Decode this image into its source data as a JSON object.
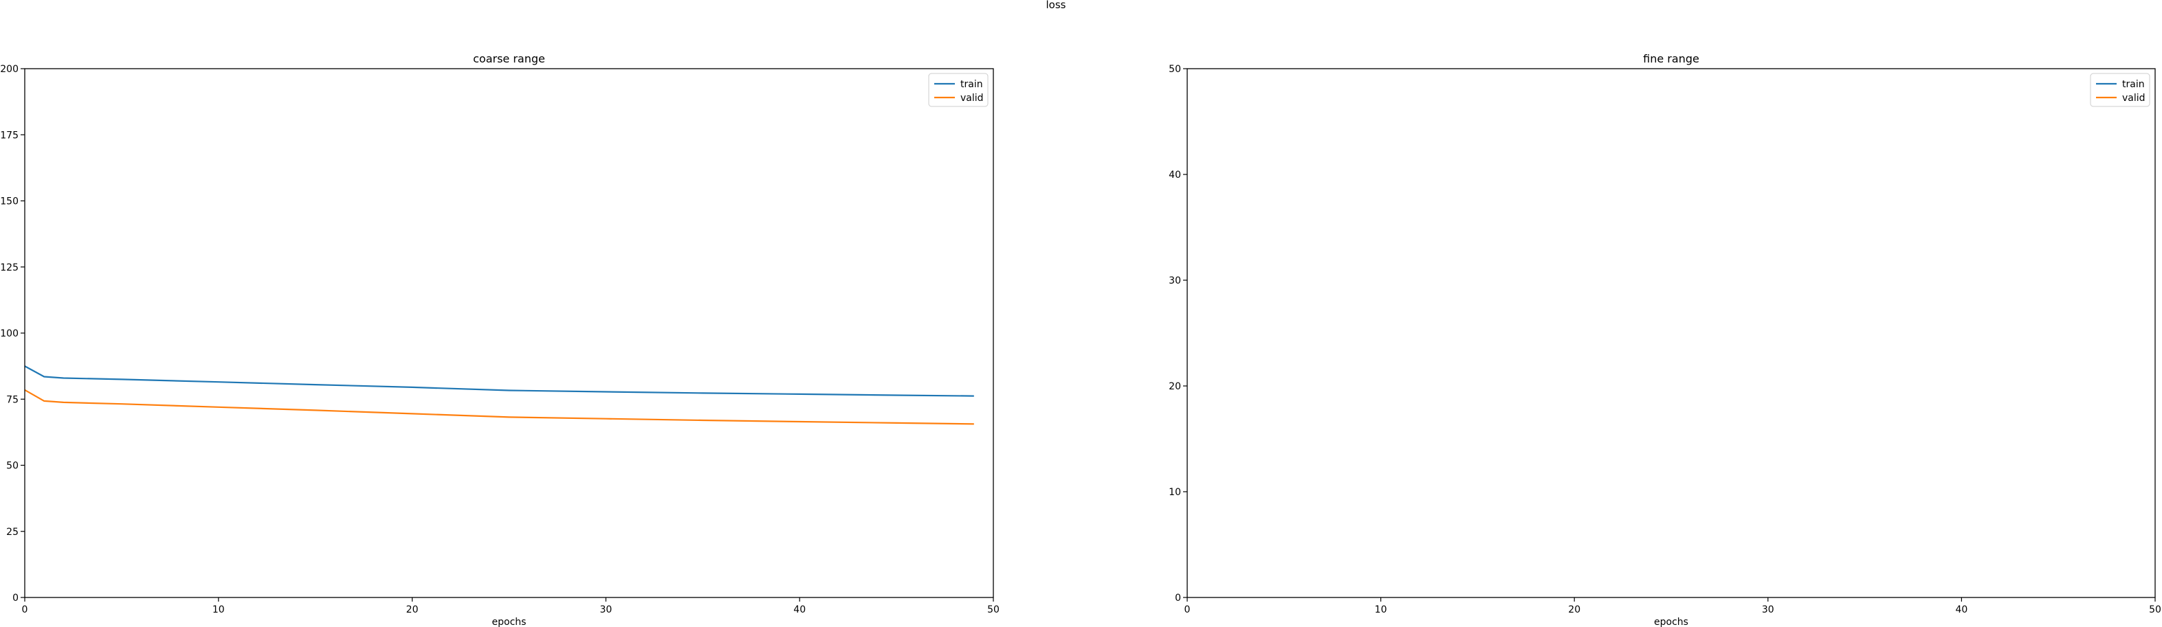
{
  "figure": {
    "suptitle": "loss"
  },
  "chart_data": [
    {
      "type": "line",
      "title": "coarse range",
      "xlabel": "epochs",
      "ylabel": "",
      "xlim": [
        0,
        50
      ],
      "ylim": [
        0,
        200
      ],
      "xticks": [
        0,
        10,
        20,
        30,
        40,
        50
      ],
      "yticks": [
        0,
        25,
        50,
        75,
        100,
        125,
        150,
        175,
        200
      ],
      "grid": false,
      "legend": "top-right",
      "series": [
        {
          "name": "train",
          "color": "#1f77b4",
          "x": [
            0,
            1,
            2,
            5,
            10,
            15,
            20,
            25,
            30,
            35,
            40,
            45,
            49
          ],
          "y": [
            87.5,
            83.5,
            83.0,
            82.5,
            81.5,
            80.5,
            79.5,
            78.3,
            77.8,
            77.3,
            76.9,
            76.5,
            76.2
          ]
        },
        {
          "name": "valid",
          "color": "#ff7f0e",
          "x": [
            0,
            1,
            2,
            5,
            10,
            15,
            20,
            25,
            30,
            35,
            40,
            45,
            49
          ],
          "y": [
            78.5,
            74.3,
            73.8,
            73.2,
            72.0,
            70.8,
            69.5,
            68.2,
            67.6,
            67.0,
            66.5,
            66.0,
            65.6
          ]
        }
      ]
    },
    {
      "type": "line",
      "title": "fine range",
      "xlabel": "epochs",
      "ylabel": "",
      "xlim": [
        0,
        50
      ],
      "ylim": [
        0,
        50
      ],
      "xticks": [
        0,
        10,
        20,
        30,
        40,
        50
      ],
      "yticks": [
        0,
        10,
        20,
        30,
        40,
        50
      ],
      "grid": false,
      "legend": "top-right",
      "series": [
        {
          "name": "train",
          "color": "#1f77b4",
          "x": [],
          "y": []
        },
        {
          "name": "valid",
          "color": "#ff7f0e",
          "x": [],
          "y": []
        }
      ]
    }
  ]
}
